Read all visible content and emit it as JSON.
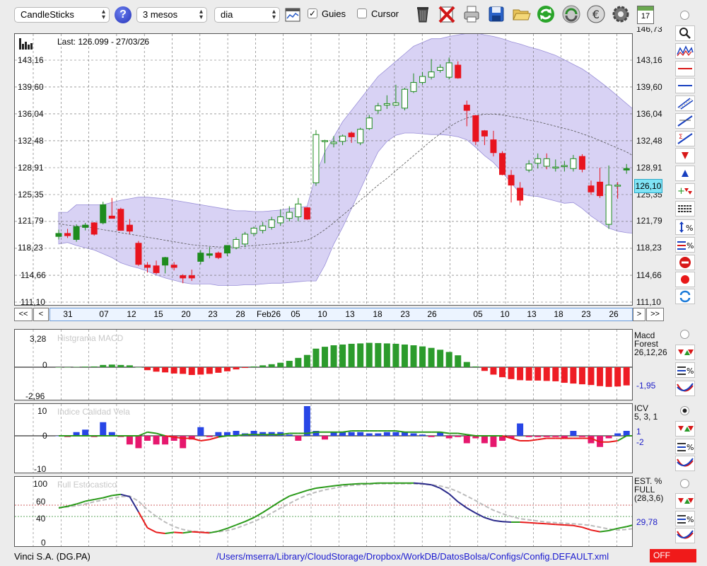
{
  "toolbar": {
    "chart_type": "CandleSticks",
    "period": "3 mesos",
    "interval": "dia",
    "guides_label": "Guies",
    "guides_checked": true,
    "cursor_label": "Cursor",
    "cursor_checked": false,
    "calendar_day": "17"
  },
  "main_chart": {
    "last_info": "Last: 126.099 - 27/03/26",
    "y_ticks": [
      "143,16",
      "139,60",
      "136,04",
      "132,48",
      "128,91",
      "125,35",
      "121,79",
      "118,23",
      "114,66",
      "111,10"
    ],
    "top_partial": "146,73",
    "price_tag": "126,10",
    "x_ticks": [
      "31",
      "07",
      "12",
      "15",
      "20",
      "23",
      "28",
      "Feb26",
      "05",
      "10",
      "13",
      "18",
      "23",
      "26",
      "05",
      "10",
      "13",
      "18",
      "23",
      "26"
    ],
    "nav": {
      "first": "<<",
      "prev": "<",
      "next": ">",
      "last": ">>"
    }
  },
  "macd": {
    "title": "Histgrama MACD",
    "name": "Macd",
    "subname": "Forest",
    "params": "26,12,26",
    "value": "-1,95",
    "y_ticks": [
      "3,28",
      "0",
      "-2,96"
    ]
  },
  "icv": {
    "title": "Indice Calidad Vela",
    "name": "ICV",
    "params": "5, 3, 1",
    "value1": "1",
    "value2": "-2",
    "y_ticks": [
      "10",
      "0",
      "-10"
    ]
  },
  "stoch": {
    "title": "Full Estocastico",
    "name": "EST. %",
    "subname": "FULL",
    "params": "(28,3,6)",
    "value": "29,78",
    "y_ticks": [
      "100",
      "60",
      "40",
      "0"
    ]
  },
  "status": {
    "company": "Vinci S.A. (DG.PA)",
    "path": "/Users/mserra/Library/CloudStorage/Dropbox/WorkDB/DatosBolsa/Configs/Config.DEFAULT.xml",
    "off_label": "OFF"
  },
  "colors": {
    "up": "#1e8c1e",
    "down": "#e8141e",
    "band": "#cbc3f0",
    "macd_pos": "#2c9b2c",
    "macd_neg": "#ee1c24",
    "icv_pos": "#2846e6",
    "icv_neg": "#e6186e",
    "stoch_up": "#2a9a1a",
    "stoch_mid": "#2a2a8a",
    "stoch_down": "#e81a1a"
  },
  "candles": [
    {
      "o": 119.8,
      "h": 120.7,
      "l": 119.4,
      "c": 120.2
    },
    {
      "o": 120.2,
      "h": 120.8,
      "l": 119.6,
      "c": 119.9
    },
    {
      "o": 119.4,
      "h": 121.4,
      "l": 119.1,
      "c": 121.1
    },
    {
      "o": 121.0,
      "h": 121.6,
      "l": 120.6,
      "c": 121.3
    },
    {
      "o": 121.6,
      "h": 121.7,
      "l": 119.9,
      "c": 120.1
    },
    {
      "o": 121.6,
      "h": 124.4,
      "l": 121.4,
      "c": 124.0
    },
    {
      "o": 122.5,
      "h": 124.9,
      "l": 122.2,
      "c": 122.2
    },
    {
      "o": 123.4,
      "h": 123.6,
      "l": 120.6,
      "c": 120.6
    },
    {
      "o": 121.3,
      "h": 122.1,
      "l": 120.1,
      "c": 120.5
    },
    {
      "o": 118.9,
      "h": 119.2,
      "l": 115.9,
      "c": 116.1
    },
    {
      "o": 116.0,
      "h": 116.4,
      "l": 115.0,
      "c": 115.7
    },
    {
      "o": 115.9,
      "h": 116.6,
      "l": 114.8,
      "c": 115.0
    },
    {
      "o": 116.0,
      "h": 117.1,
      "l": 114.9,
      "c": 117.0
    },
    {
      "o": 116.0,
      "h": 116.4,
      "l": 115.3,
      "c": 115.7
    },
    {
      "o": 114.6,
      "h": 114.8,
      "l": 113.6,
      "c": 114.3
    },
    {
      "o": 114.6,
      "h": 115.4,
      "l": 113.9,
      "c": 114.3
    },
    {
      "o": 116.5,
      "h": 118.0,
      "l": 116.1,
      "c": 117.6
    },
    {
      "o": 117.3,
      "h": 118.4,
      "l": 116.9,
      "c": 117.5
    },
    {
      "o": 117.6,
      "h": 117.8,
      "l": 116.8,
      "c": 117.0
    },
    {
      "o": 117.6,
      "h": 118.6,
      "l": 117.2,
      "c": 118.6
    },
    {
      "o": 118.3,
      "h": 119.7,
      "l": 118.1,
      "c": 119.4
    },
    {
      "o": 118.8,
      "h": 120.4,
      "l": 118.4,
      "c": 120.1
    },
    {
      "o": 120.2,
      "h": 121.1,
      "l": 119.8,
      "c": 120.9
    },
    {
      "o": 120.6,
      "h": 121.7,
      "l": 120.2,
      "c": 121.2
    },
    {
      "o": 121.0,
      "h": 122.4,
      "l": 120.7,
      "c": 122.0
    },
    {
      "o": 121.6,
      "h": 123.4,
      "l": 121.2,
      "c": 122.4
    },
    {
      "o": 122.2,
      "h": 123.8,
      "l": 121.8,
      "c": 123.0
    },
    {
      "o": 122.4,
      "h": 124.9,
      "l": 121.8,
      "c": 124.1
    },
    {
      "o": 123.6,
      "h": 123.7,
      "l": 122.0,
      "c": 122.1
    },
    {
      "o": 126.9,
      "h": 133.9,
      "l": 126.5,
      "c": 133.3
    },
    {
      "o": 132.4,
      "h": 132.6,
      "l": 129.5,
      "c": 132.5
    },
    {
      "o": 132.1,
      "h": 133.1,
      "l": 131.6,
      "c": 132.3
    },
    {
      "o": 132.4,
      "h": 133.3,
      "l": 131.9,
      "c": 133.1
    },
    {
      "o": 133.5,
      "h": 133.7,
      "l": 132.2,
      "c": 133.0
    },
    {
      "o": 132.2,
      "h": 134.2,
      "l": 131.9,
      "c": 134.0
    },
    {
      "o": 134.1,
      "h": 135.9,
      "l": 133.9,
      "c": 135.5
    },
    {
      "o": 136.5,
      "h": 137.5,
      "l": 136.0,
      "c": 137.1
    },
    {
      "o": 137.2,
      "h": 138.5,
      "l": 136.7,
      "c": 137.4
    },
    {
      "o": 137.2,
      "h": 139.9,
      "l": 137.1,
      "c": 137.5
    },
    {
      "o": 136.8,
      "h": 139.5,
      "l": 136.5,
      "c": 139.3
    },
    {
      "o": 139.0,
      "h": 141.4,
      "l": 138.8,
      "c": 140.2
    },
    {
      "o": 140.2,
      "h": 141.6,
      "l": 139.9,
      "c": 141.0
    },
    {
      "o": 140.9,
      "h": 143.3,
      "l": 140.6,
      "c": 141.6
    },
    {
      "o": 141.8,
      "h": 142.6,
      "l": 141.5,
      "c": 142.2
    },
    {
      "o": 140.9,
      "h": 143.5,
      "l": 140.6,
      "c": 142.8
    },
    {
      "o": 142.5,
      "h": 143.0,
      "l": 140.7,
      "c": 140.8
    },
    {
      "o": 137.2,
      "h": 137.8,
      "l": 134.4,
      "c": 136.5
    },
    {
      "o": 135.8,
      "h": 135.9,
      "l": 131.9,
      "c": 132.4
    },
    {
      "o": 133.8,
      "h": 133.9,
      "l": 131.9,
      "c": 133.1
    },
    {
      "o": 132.6,
      "h": 133.8,
      "l": 130.4,
      "c": 130.9
    },
    {
      "o": 130.8,
      "h": 131.1,
      "l": 127.9,
      "c": 128.0
    },
    {
      "o": 127.9,
      "h": 128.6,
      "l": 124.3,
      "c": 126.6
    },
    {
      "o": 126.2,
      "h": 127.0,
      "l": 123.9,
      "c": 124.6
    },
    {
      "o": 128.6,
      "h": 129.9,
      "l": 128.3,
      "c": 129.4
    },
    {
      "o": 129.5,
      "h": 130.8,
      "l": 128.8,
      "c": 130.1
    },
    {
      "o": 130.1,
      "h": 130.8,
      "l": 128.7,
      "c": 129.1
    },
    {
      "o": 128.9,
      "h": 130.0,
      "l": 128.4,
      "c": 129.0
    },
    {
      "o": 129.1,
      "h": 129.8,
      "l": 128.4,
      "c": 129.2
    },
    {
      "o": 128.8,
      "h": 130.6,
      "l": 128.4,
      "c": 130.1
    },
    {
      "o": 130.4,
      "h": 130.7,
      "l": 128.3,
      "c": 128.7
    },
    {
      "o": 126.5,
      "h": 127.2,
      "l": 125.3,
      "c": 125.7
    },
    {
      "o": 127.0,
      "h": 128.9,
      "l": 124.9,
      "c": 125.2
    },
    {
      "o": 121.4,
      "h": 129.2,
      "l": 120.8,
      "c": 126.6
    },
    {
      "o": 126.6,
      "h": 127.0,
      "l": 124.8,
      "c": 126.5
    },
    {
      "o": 128.6,
      "h": 129.4,
      "l": 128.1,
      "c": 128.8
    },
    {
      "o": 128.2,
      "h": 128.5,
      "l": 126.4,
      "c": 126.9
    },
    {
      "o": 126.6,
      "h": 126.9,
      "l": 124.9,
      "c": 126.1
    }
  ],
  "macd_hist": [
    0.0,
    0.01,
    0.04,
    0.08,
    0.1,
    0.3,
    0.35,
    0.3,
    0.25,
    0.0,
    -0.4,
    -0.6,
    -0.7,
    -0.85,
    -0.9,
    -1.05,
    -1.0,
    -0.9,
    -0.75,
    -0.55,
    -0.3,
    -0.1,
    0.1,
    0.25,
    0.4,
    0.6,
    0.85,
    1.25,
    1.65,
    2.5,
    2.75,
    2.95,
    3.05,
    3.15,
    3.2,
    3.28,
    3.25,
    3.2,
    3.15,
    3.05,
    2.95,
    2.8,
    2.6,
    2.35,
    2.05,
    1.6,
    0.7,
    0.1,
    -0.5,
    -1.0,
    -1.35,
    -1.6,
    -1.75,
    -1.8,
    -1.8,
    -1.85,
    -1.9,
    -2.1,
    -2.2,
    -2.3,
    -2.4,
    -2.55,
    -2.65,
    -2.6,
    -2.45,
    -2.2,
    -1.95
  ],
  "icv_bars": [
    0,
    -0.5,
    1.5,
    2.5,
    -0.5,
    5.5,
    1.5,
    -0.5,
    -3.5,
    -5,
    -2,
    -3.5,
    -3.5,
    -2,
    -5,
    -1.5,
    3.5,
    -0.5,
    1.5,
    1.5,
    2,
    1,
    2,
    1.5,
    1.5,
    1.5,
    0.5,
    -2,
    12,
    2,
    -1.5,
    1.5,
    1.5,
    1.5,
    1.5,
    1,
    1,
    1.5,
    1.5,
    1.5,
    1,
    0.5,
    -0.5,
    1.5,
    -1,
    -0.5,
    -3,
    -1,
    -3,
    -4.5,
    -2,
    -1,
    5,
    -0.5,
    -0.5,
    -0.5,
    -0.5,
    -1,
    2,
    -0.5,
    -3,
    -4.5,
    -1,
    1,
    2,
    -1.5,
    -2
  ],
  "icv_line": [
    0,
    0,
    0,
    0,
    0,
    0,
    0,
    0,
    0,
    0,
    1.5,
    1,
    0,
    -0.5,
    -1,
    -1,
    -2,
    -1.5,
    -0.5,
    0,
    0,
    0.5,
    0.5,
    0.5,
    0.5,
    0.5,
    1,
    1,
    1,
    1.5,
    1.5,
    1.5,
    1.5,
    2,
    2,
    2,
    2,
    2,
    2,
    1.5,
    1.5,
    1.5,
    1.5,
    1.5,
    1,
    1,
    0.5,
    0,
    0,
    0,
    0,
    -1,
    -2,
    -2,
    -1.5,
    -1,
    -1,
    -1,
    -1,
    -1,
    -1,
    -2.5,
    -2.5,
    -2,
    0,
    0,
    0
  ],
  "stoch_k": [
    55,
    58,
    62,
    67,
    70,
    73,
    77,
    79,
    75,
    48,
    20,
    12,
    10,
    12,
    11,
    13,
    12,
    11,
    14,
    19,
    25,
    31,
    38,
    47,
    57,
    67,
    76,
    81,
    86,
    90,
    92,
    94,
    96,
    97,
    98,
    98,
    99,
    99,
    99,
    99,
    99,
    98,
    96,
    90,
    80,
    66,
    55,
    46,
    38,
    33,
    31,
    30,
    30,
    29,
    28,
    27,
    26,
    25,
    24,
    21,
    16,
    13,
    15,
    19,
    22,
    26,
    29.78
  ],
  "stoch_d": [
    56,
    57,
    59,
    62,
    66,
    69,
    72,
    75,
    76,
    67,
    52,
    40,
    30,
    22,
    17,
    14,
    13,
    12,
    13,
    15,
    19,
    25,
    31,
    38,
    46,
    55,
    63,
    71,
    78,
    83,
    87,
    90,
    93,
    95,
    96,
    97,
    98,
    98,
    98,
    98,
    98,
    97,
    96,
    94,
    90,
    84,
    76,
    68,
    59,
    51,
    45,
    40,
    36,
    34,
    32,
    30,
    29,
    28,
    27,
    26,
    24,
    21,
    18,
    16,
    17,
    19,
    22
  ],
  "band_upper": [
    123,
    123,
    124,
    124,
    124,
    124,
    124.3,
    124.6,
    124.8,
    125,
    125,
    124.9,
    124.8,
    124.6,
    124.4,
    124.2,
    124,
    123.8,
    123.6,
    123.4,
    123.2,
    123.2,
    123.1,
    123.1,
    123.2,
    123.3,
    123.5,
    123.6,
    123.8,
    128,
    131,
    133,
    135,
    136.5,
    138,
    139.5,
    141,
    142,
    143,
    144,
    145,
    145.5,
    146,
    146,
    146.3,
    146.5,
    146.7,
    146.8,
    146.5,
    146.3,
    146,
    145.6,
    145.3,
    144.9,
    144.6,
    144.2,
    143.8,
    143.2,
    142.6,
    142,
    141.2,
    140.3,
    139.4,
    138.4,
    137.4,
    136.4,
    135.3
  ],
  "band_mid": [
    121.5,
    121.3,
    121.2,
    121.1,
    120.9,
    120.7,
    120.5,
    120.3,
    120.1,
    119.9,
    119.7,
    119.5,
    119.3,
    119.1,
    118.9,
    118.7,
    118.6,
    118.5,
    118.4,
    118.4,
    118.4,
    118.5,
    118.6,
    118.7,
    118.8,
    118.9,
    119.0,
    119.1,
    119.3,
    119.9,
    120.7,
    121.6,
    122.6,
    123.6,
    124.6,
    125.6,
    126.6,
    127.5,
    128.5,
    129.5,
    130.5,
    131.5,
    132.5,
    133.4,
    134.3,
    135.0,
    135.5,
    135.8,
    136.0,
    136.0,
    135.9,
    135.7,
    135.5,
    135.2,
    135.0,
    134.7,
    134.4,
    134.1,
    133.8,
    133.4,
    133.0,
    132.5,
    132.0,
    131.5,
    131.0,
    130.3,
    129.8
  ],
  "band_lower": [
    118.8,
    119,
    118.6,
    118.3,
    118,
    117.5,
    117,
    116.3,
    115.9,
    115.6,
    115.2,
    114.7,
    114.3,
    114.0,
    113.7,
    113.5,
    113.5,
    113.5,
    113.3,
    113.3,
    113.3,
    113.4,
    113.4,
    113.5,
    113.6,
    113.6,
    113.7,
    113.8,
    113.9,
    113.9,
    116,
    118.8,
    121,
    123.5,
    126,
    128.6,
    131,
    132.4,
    133.2,
    133.5,
    133.5,
    133.4,
    133.3,
    133.3,
    133.2,
    133,
    132.6,
    131.6,
    130.5,
    129.6,
    128.3,
    126.9,
    125.5,
    125.2,
    125.1,
    124.8,
    124.5,
    124.2,
    124.3,
    123.5,
    122.5,
    121.7,
    120.9,
    120.5,
    120.3,
    120.2,
    121.2
  ]
}
